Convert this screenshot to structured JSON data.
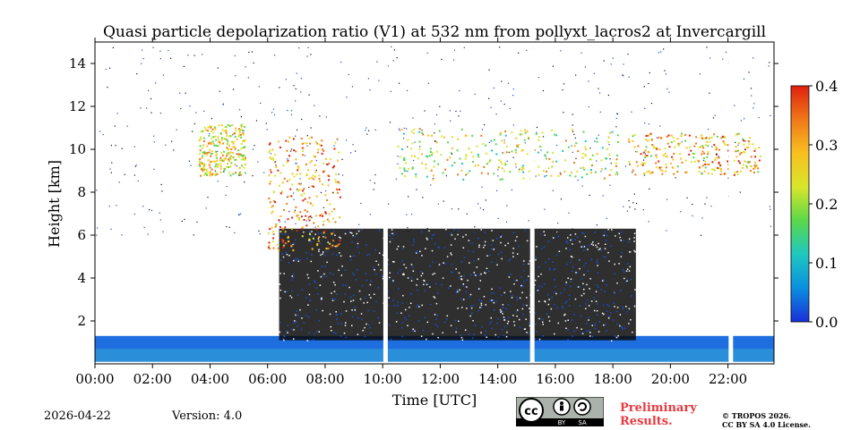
{
  "chart_data": {
    "type": "heatmap",
    "title": "Quasi particle depolarization ratio (V1) at 532 nm from pollyxt_lacros2 at Invercargill",
    "xlabel": "Time [UTC]",
    "ylabel": "Height [km]",
    "xlim": [
      0,
      23.6
    ],
    "ylim": [
      0,
      15
    ],
    "x_ticks": [
      {
        "value": 0,
        "label": "00:00"
      },
      {
        "value": 2,
        "label": "02:00"
      },
      {
        "value": 4,
        "label": "04:00"
      },
      {
        "value": 6,
        "label": "06:00"
      },
      {
        "value": 8,
        "label": "08:00"
      },
      {
        "value": 10,
        "label": "10:00"
      },
      {
        "value": 12,
        "label": "12:00"
      },
      {
        "value": 14,
        "label": "14:00"
      },
      {
        "value": 16,
        "label": "16:00"
      },
      {
        "value": 18,
        "label": "18:00"
      },
      {
        "value": 20,
        "label": "20:00"
      },
      {
        "value": 22,
        "label": "22:00"
      }
    ],
    "y_ticks": [
      {
        "value": 2,
        "label": "2"
      },
      {
        "value": 4,
        "label": "4"
      },
      {
        "value": 6,
        "label": "6"
      },
      {
        "value": 8,
        "label": "8"
      },
      {
        "value": 10,
        "label": "10"
      },
      {
        "value": 12,
        "label": "12"
      },
      {
        "value": 14,
        "label": "14"
      }
    ],
    "colorbar": {
      "range": [
        0.0,
        0.4
      ],
      "ticks": [
        {
          "value": 0.0,
          "label": "0.0"
        },
        {
          "value": 0.1,
          "label": "0.1"
        },
        {
          "value": 0.2,
          "label": "0.2"
        },
        {
          "value": 0.3,
          "label": "0.3"
        },
        {
          "value": 0.4,
          "label": "0.4"
        }
      ],
      "colormap": [
        "#1a2fd8",
        "#0a8fe0",
        "#1ec7c0",
        "#5ad84a",
        "#d8e62a",
        "#f8c020",
        "#f07818",
        "#e02010"
      ]
    },
    "gaps_hours": [
      10.1,
      15.2,
      22.1
    ],
    "regions": [
      {
        "name": "boundary-layer",
        "t0": 0,
        "t1": 23.6,
        "h0": 0.1,
        "h1": 1.3,
        "value": 0.05
      },
      {
        "name": "dense-cloud",
        "t0": 6.4,
        "t1": 18.8,
        "h0": 1.1,
        "h1": 6.3,
        "value": 0.0
      },
      {
        "name": "mixed-phase-cloud",
        "t0": 6.0,
        "t1": 8.5,
        "h0": 5.3,
        "h1": 10.6,
        "value": 0.3
      },
      {
        "name": "cirrus-a",
        "t0": 3.6,
        "t1": 5.2,
        "h0": 8.8,
        "h1": 11.2,
        "value": 0.25
      },
      {
        "name": "cirrus-b",
        "t0": 10.5,
        "t1": 18.2,
        "h0": 8.6,
        "h1": 11.0,
        "value": 0.22
      },
      {
        "name": "cirrus-c",
        "t0": 18.5,
        "t1": 23.1,
        "h0": 8.8,
        "h1": 10.8,
        "value": 0.28
      }
    ]
  },
  "footer": {
    "date": "2026-04-22",
    "version": "Version: 4.0",
    "preliminary_line1": "Preliminary",
    "preliminary_line2": "Results.",
    "copyright_line1": "© TROPOS 2026.",
    "copyright_line2": "CC BY SA 4.0 License.",
    "license_by": "BY",
    "license_sa": "SA"
  },
  "colors": {
    "accent_red": "#e8393f"
  }
}
